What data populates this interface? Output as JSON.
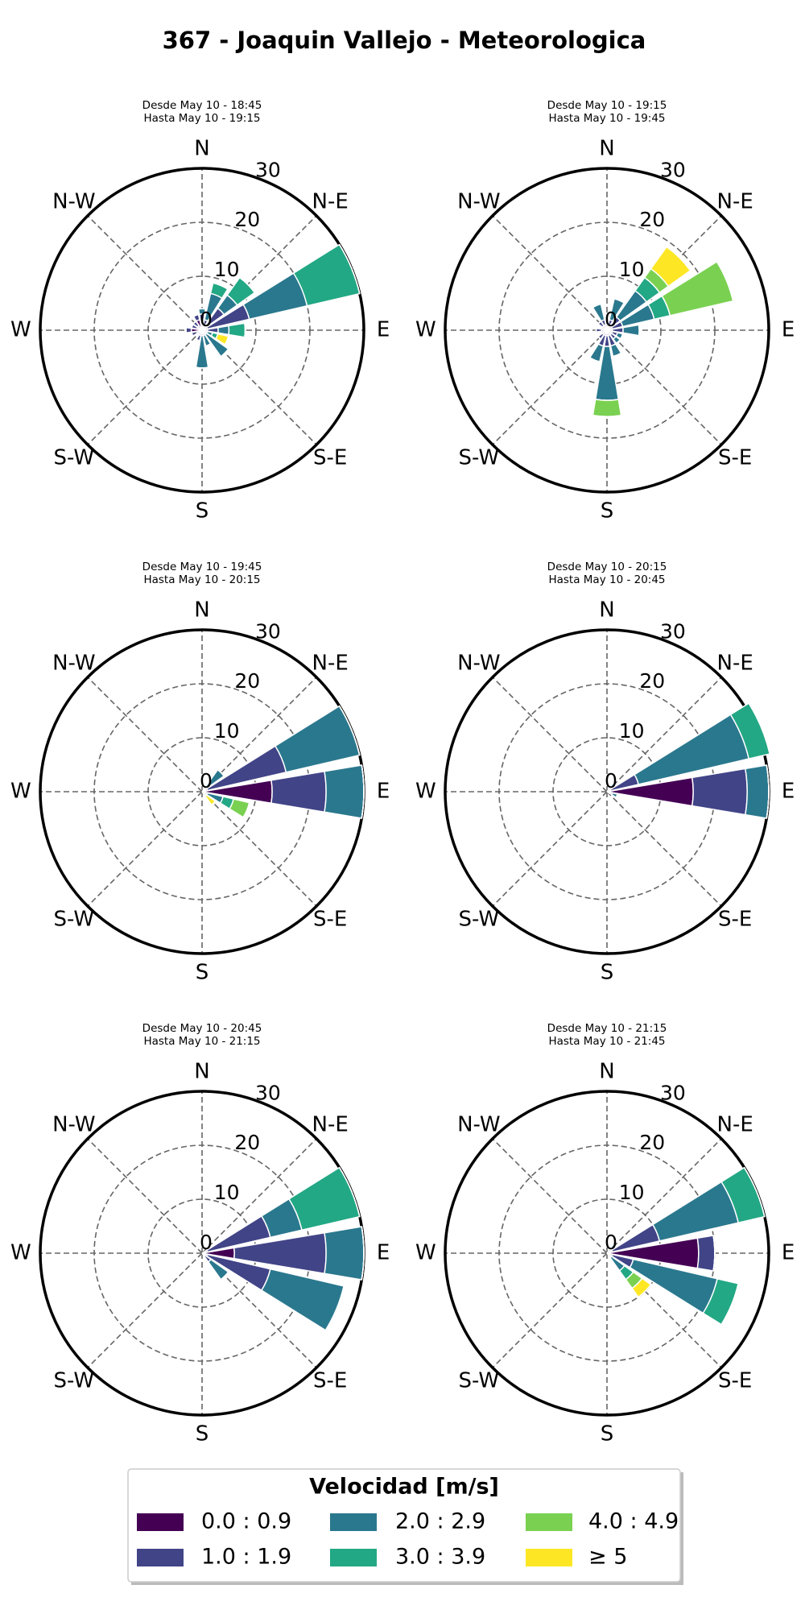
{
  "title": "367 - Joaquin Vallejo - Meteorologica",
  "legend": {
    "title": "Velocidad [m/s]",
    "entries": [
      {
        "name": "0.0 : 0.9",
        "color": "#440154"
      },
      {
        "name": "1.0 : 1.9",
        "color": "#414487"
      },
      {
        "name": "2.0 : 2.9",
        "color": "#2a788e"
      },
      {
        "name": "3.0 : 3.9",
        "color": "#22a884"
      },
      {
        "name": "4.0 : 4.9",
        "color": "#7ad151"
      },
      {
        "name": "≥ 5",
        "color": "#fde725"
      }
    ]
  },
  "chart_data": [
    {
      "type": "windrose",
      "subtitle": [
        "Desde May 10 - 18:45",
        "Hasta May 10 - 19:15"
      ],
      "categories": [
        "N",
        null,
        "N-E",
        null,
        "E",
        null,
        "S-E",
        null,
        "S",
        null,
        "S-W",
        null,
        "W",
        null,
        "N-W",
        null
      ],
      "ylim": [
        0,
        30
      ],
      "yticks": [
        0,
        10,
        20,
        30
      ],
      "series": [
        {
          "values": [
            1,
            0,
            1,
            1,
            1,
            0,
            0,
            0,
            0,
            1,
            1,
            1,
            2,
            1,
            1,
            2
          ]
        },
        {
          "values": [
            2,
            2,
            4,
            8,
            2,
            1,
            1,
            1,
            1,
            1,
            0,
            1,
            1,
            1,
            1,
            1
          ]
        },
        {
          "values": [
            1,
            5,
            3,
            11,
            2,
            1,
            5,
            2,
            6,
            0,
            0,
            0,
            0,
            0,
            0,
            0
          ]
        },
        {
          "values": [
            0,
            2,
            4,
            10,
            3,
            1,
            0,
            0,
            0,
            0,
            0,
            0,
            0,
            0,
            0,
            0
          ]
        },
        {
          "values": [
            0,
            0,
            0,
            0,
            0,
            0,
            0,
            0,
            0,
            0,
            0,
            0,
            0,
            0,
            0,
            0
          ]
        },
        {
          "values": [
            0,
            0,
            0,
            0,
            0,
            2,
            0,
            0,
            0,
            0,
            0,
            0,
            0,
            0,
            0,
            0
          ]
        }
      ]
    },
    {
      "type": "windrose",
      "subtitle": [
        "Desde May 10 - 19:15",
        "Hasta May 10 - 19:45"
      ],
      "categories": [
        "N",
        null,
        "N-E",
        null,
        "E",
        null,
        "S-E",
        null,
        "S",
        null,
        "S-W",
        null,
        "W",
        null,
        "N-W",
        null
      ],
      "ylim": [
        0,
        30
      ],
      "yticks": [
        0,
        10,
        20,
        30
      ],
      "series": [
        {
          "values": [
            1,
            1,
            1,
            1,
            1,
            1,
            1,
            1,
            1,
            1,
            1,
            1,
            1,
            1,
            1,
            1
          ]
        },
        {
          "values": [
            1,
            1,
            2,
            2,
            2,
            1,
            1,
            2,
            2,
            2,
            1,
            0,
            1,
            0,
            1,
            1
          ]
        },
        {
          "values": [
            0,
            4,
            6,
            6,
            3,
            1,
            1,
            2,
            10,
            3,
            0,
            0,
            0,
            0,
            0,
            3
          ]
        },
        {
          "values": [
            0,
            0,
            3,
            3,
            0,
            0,
            0,
            0,
            0,
            0,
            0,
            0,
            0,
            0,
            0,
            0
          ]
        },
        {
          "values": [
            0,
            0,
            2,
            12,
            0,
            0,
            0,
            0,
            3,
            0,
            0,
            0,
            0,
            0,
            0,
            0
          ]
        },
        {
          "values": [
            0,
            0,
            5,
            0,
            0,
            0,
            0,
            0,
            0,
            0,
            0,
            0,
            0,
            0,
            0,
            0
          ]
        }
      ]
    },
    {
      "type": "windrose",
      "subtitle": [
        "Desde May 10 - 19:45",
        "Hasta May 10 - 20:15"
      ],
      "categories": [
        "N",
        null,
        "N-E",
        null,
        "E",
        null,
        "S-E",
        null,
        "S",
        null,
        "S-W",
        null,
        "W",
        null,
        "N-W",
        null
      ],
      "ylim": [
        0,
        30
      ],
      "yticks": [
        0,
        10,
        20,
        30
      ],
      "series": [
        {
          "values": [
            0,
            0,
            0,
            1,
            13,
            0,
            0,
            0,
            0,
            0,
            0,
            0,
            0,
            0,
            0,
            0
          ]
        },
        {
          "values": [
            0,
            0,
            1,
            15,
            10,
            1,
            0,
            0,
            0,
            0,
            0,
            0,
            0,
            0,
            0,
            0
          ]
        },
        {
          "values": [
            0,
            0,
            4,
            14,
            7,
            3,
            1,
            0,
            0,
            0,
            0,
            0,
            0,
            0,
            0,
            0
          ]
        },
        {
          "values": [
            0,
            0,
            0,
            0,
            0,
            2,
            0,
            0,
            0,
            0,
            0,
            0,
            0,
            0,
            0,
            0
          ]
        },
        {
          "values": [
            0,
            0,
            0,
            0,
            0,
            3,
            0,
            0,
            0,
            0,
            0,
            0,
            0,
            0,
            0,
            0
          ]
        },
        {
          "values": [
            0,
            0,
            0,
            0,
            0,
            0,
            2,
            0,
            0,
            0,
            0,
            0,
            0,
            0,
            0,
            0
          ]
        }
      ]
    },
    {
      "type": "windrose",
      "subtitle": [
        "Desde May 10 - 20:15",
        "Hasta May 10 - 20:45"
      ],
      "categories": [
        "N",
        null,
        "N-E",
        null,
        "E",
        null,
        "S-E",
        null,
        "S",
        null,
        "S-W",
        null,
        "W",
        null,
        "N-W",
        null
      ],
      "ylim": [
        0,
        30
      ],
      "yticks": [
        0,
        10,
        20,
        30
      ],
      "series": [
        {
          "values": [
            0,
            0,
            0,
            0,
            16,
            0,
            0,
            0,
            0,
            0,
            0,
            0,
            0,
            0,
            0,
            0
          ]
        },
        {
          "values": [
            0,
            0,
            1,
            6,
            10,
            1,
            0,
            0,
            0,
            0,
            0,
            0,
            0,
            0,
            0,
            0
          ]
        },
        {
          "values": [
            0,
            0,
            1,
            21,
            4,
            1,
            0,
            0,
            0,
            0,
            0,
            0,
            0,
            0,
            0,
            0
          ]
        },
        {
          "values": [
            0,
            0,
            0,
            4,
            0,
            0,
            0,
            0,
            0,
            0,
            0,
            0,
            0,
            0,
            0,
            0
          ]
        },
        {
          "values": [
            0,
            0,
            0,
            0,
            0,
            0,
            0,
            0,
            0,
            0,
            0,
            0,
            0,
            0,
            0,
            0
          ]
        },
        {
          "values": [
            0,
            0,
            0,
            0,
            0,
            0,
            0,
            0,
            0,
            0,
            0,
            0,
            0,
            0,
            0,
            0
          ]
        }
      ]
    },
    {
      "type": "windrose",
      "subtitle": [
        "Desde May 10 - 20:45",
        "Hasta May 10 - 21:15"
      ],
      "categories": [
        "N",
        null,
        "N-E",
        null,
        "E",
        null,
        "S-E",
        null,
        "S",
        null,
        "S-W",
        null,
        "W",
        null,
        "N-W",
        null
      ],
      "ylim": [
        0,
        30
      ],
      "yticks": [
        0,
        10,
        20,
        30
      ],
      "series": [
        {
          "values": [
            0,
            0,
            0,
            1,
            6,
            1,
            0,
            0,
            0,
            0,
            0,
            0,
            0,
            0,
            0,
            0
          ]
        },
        {
          "values": [
            0,
            0,
            0,
            12,
            17,
            12,
            2,
            0,
            0,
            0,
            0,
            0,
            0,
            0,
            0,
            0
          ]
        },
        {
          "values": [
            0,
            0,
            0,
            6,
            7,
            14,
            4,
            0,
            0,
            0,
            0,
            0,
            0,
            0,
            0,
            0
          ]
        },
        {
          "values": [
            0,
            0,
            0,
            11,
            0,
            0,
            0,
            0,
            0,
            0,
            0,
            0,
            0,
            0,
            0,
            0
          ]
        },
        {
          "values": [
            0,
            0,
            0,
            0,
            0,
            0,
            0,
            0,
            0,
            0,
            0,
            0,
            0,
            0,
            0,
            0
          ]
        },
        {
          "values": [
            0,
            0,
            0,
            0,
            0,
            0,
            0,
            0,
            0,
            0,
            0,
            0,
            0,
            0,
            0,
            0
          ]
        }
      ]
    },
    {
      "type": "windrose",
      "subtitle": [
        "Desde May 10 - 21:15",
        "Hasta May 10 - 21:45"
      ],
      "categories": [
        "N",
        null,
        "N-E",
        null,
        "E",
        null,
        "S-E",
        null,
        "S",
        null,
        "S-W",
        null,
        "W",
        null,
        "N-W",
        null
      ],
      "ylim": [
        0,
        30
      ],
      "yticks": [
        0,
        10,
        20,
        30
      ],
      "series": [
        {
          "values": [
            0,
            0,
            0,
            1,
            17,
            1,
            0,
            0,
            0,
            0,
            0,
            0,
            0,
            0,
            0,
            0
          ]
        },
        {
          "values": [
            0,
            0,
            1,
            9,
            3,
            4,
            1,
            0,
            0,
            0,
            0,
            0,
            0,
            0,
            0,
            0
          ]
        },
        {
          "values": [
            0,
            0,
            1,
            15,
            0,
            16,
            3,
            0,
            0,
            0,
            0,
            0,
            0,
            0,
            0,
            0
          ]
        },
        {
          "values": [
            0,
            0,
            0,
            5,
            0,
            4,
            2,
            0,
            0,
            0,
            0,
            0,
            0,
            0,
            0,
            0
          ]
        },
        {
          "values": [
            0,
            0,
            0,
            0,
            0,
            0,
            2,
            0,
            0,
            0,
            0,
            0,
            0,
            0,
            0,
            0
          ]
        },
        {
          "values": [
            0,
            0,
            0,
            0,
            0,
            0,
            2,
            0,
            0,
            0,
            0,
            0,
            0,
            0,
            0,
            0
          ]
        }
      ]
    }
  ]
}
